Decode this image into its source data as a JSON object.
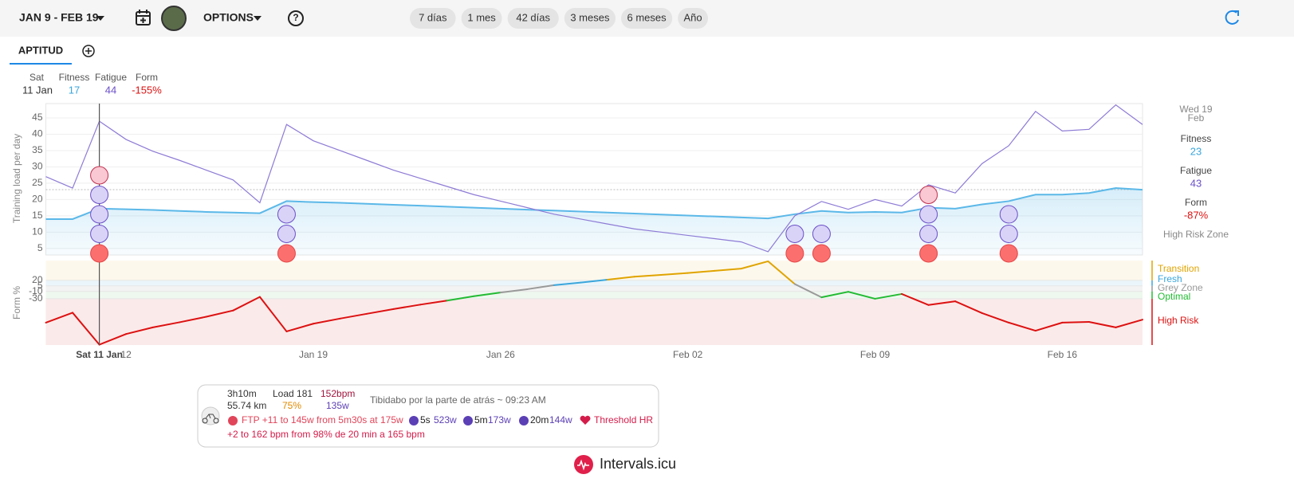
{
  "toolbar": {
    "date_range": "JAN 9 - FEB 19",
    "options": "OPTIONS",
    "ranges": [
      "7 días",
      "1 mes",
      "42 días",
      "3 meses",
      "6 meses",
      "Año"
    ]
  },
  "tabs": {
    "active": "APTITUD"
  },
  "cursor": {
    "day": "Sat",
    "date": "11 Jan",
    "fitness_label": "Fitness",
    "fitness": "17",
    "fatigue_label": "Fatigue",
    "fatigue": "44",
    "form_label": "Form",
    "form": "-155%"
  },
  "side_panel": {
    "day": "Wed 19",
    "month": "Feb",
    "fitness_label": "Fitness",
    "fitness": "23",
    "fatigue_label": "Fatigue",
    "fatigue": "43",
    "form_label": "Form",
    "form": "-87%",
    "zone": "High Risk Zone"
  },
  "chart_data": {
    "type": "line",
    "y_label": "Training load per day",
    "x": [
      "Jan 9",
      "Jan 10",
      "Jan 11",
      "Jan 12",
      "Jan 13",
      "Jan 14",
      "Jan 15",
      "Jan 16",
      "Jan 17",
      "Jan 18",
      "Jan 19",
      "Jan 20",
      "Jan 21",
      "Jan 22",
      "Jan 23",
      "Jan 24",
      "Jan 25",
      "Jan 26",
      "Jan 27",
      "Jan 28",
      "Jan 29",
      "Jan 30",
      "Jan 31",
      "Feb 1",
      "Feb 2",
      "Feb 3",
      "Feb 4",
      "Feb 5",
      "Feb 6",
      "Feb 7",
      "Feb 8",
      "Feb 9",
      "Feb 10",
      "Feb 11",
      "Feb 12",
      "Feb 13",
      "Feb 14",
      "Feb 15",
      "Feb 16",
      "Feb 17",
      "Feb 18",
      "Feb 19"
    ],
    "xticks": [
      {
        "value": "Jan 11",
        "label": "Sat 11 Jan"
      },
      {
        "value": "Jan 12",
        "label": "12"
      },
      "Jan 19",
      "Jan 26",
      {
        "value": "Feb 2",
        "label": "Feb 02"
      },
      {
        "value": "Feb 9",
        "label": "Feb 09"
      },
      "Feb 16"
    ],
    "ylim": [
      3,
      49.4
    ],
    "yticks": [
      5,
      10,
      15,
      20,
      25,
      30,
      35,
      40,
      45
    ],
    "series": [
      {
        "name": "Fitness",
        "color": "#5bb8e8",
        "values": [
          14,
          14,
          17.2,
          17,
          16.8,
          16.5,
          16.2,
          16,
          15.8,
          19.5,
          19.2,
          19,
          18.7,
          18.4,
          18.1,
          17.8,
          17.5,
          17.2,
          16.9,
          16.6,
          16.3,
          16,
          15.7,
          15.4,
          15.1,
          14.8,
          14.5,
          14.2,
          15.5,
          16.5,
          16,
          16.2,
          16,
          17.5,
          17.2,
          18.5,
          19.5,
          21.5,
          21.5,
          22,
          23.5,
          23
        ]
      },
      {
        "name": "Fatigue",
        "color": "#8e7bd6",
        "values": [
          27,
          23.5,
          44,
          38.4,
          34.8,
          32,
          29,
          26,
          19,
          43,
          38,
          35,
          32,
          29,
          26.5,
          24,
          21.5,
          19.5,
          17.5,
          15.5,
          14,
          12.5,
          11,
          10,
          9,
          8,
          7,
          4,
          15,
          19.4,
          17,
          20,
          18,
          24.5,
          22,
          31,
          36.5,
          47,
          41,
          41.5,
          49,
          43
        ]
      }
    ],
    "form": {
      "y_label": "Form %",
      "ylim": [
        -156,
        74
      ],
      "yticks": [
        20,
        5,
        -10,
        -30
      ],
      "values": [
        -95,
        -68,
        -155,
        -126,
        -108,
        -94,
        -79,
        -62,
        -25,
        -119,
        -98,
        -84,
        -71,
        -58,
        -46,
        -35,
        -23,
        -13,
        -4,
        7,
        14,
        22,
        30,
        35,
        40,
        46,
        52,
        72,
        10,
        -26,
        -11,
        -30,
        -17,
        -47,
        -37,
        -69,
        -95,
        -117,
        -95,
        -93,
        -108,
        -87
      ],
      "zones": [
        {
          "name": "Transition",
          "color": "#e0a400",
          "background": "#fdf8ec"
        },
        {
          "name": "Fresh",
          "color": "#3aa6dc",
          "background": "#eaf5fb"
        },
        {
          "name": "Grey Zone",
          "color": "#999999",
          "background": "#f3f3f3"
        },
        {
          "name": "Optimal",
          "color": "#22bb33",
          "background": "#eef8ee"
        },
        {
          "name": "High Risk",
          "color": "#dd1111",
          "background": "#fbeaea"
        }
      ]
    },
    "markers": [
      {
        "x": "Jan 11",
        "stack": [
          "#fb6f6f",
          "#d9d3f7",
          "#d9d3f7",
          "#d9d3f7",
          "#f9c8d2"
        ]
      },
      {
        "x": "Jan 18",
        "stack": [
          "#fb6f6f",
          "#d9d3f7",
          "#d9d3f7"
        ]
      },
      {
        "x": "Feb 6",
        "stack": [
          "#fb6f6f",
          "#d9d3f7"
        ]
      },
      {
        "x": "Feb 7",
        "stack": [
          "#fb6f6f",
          "#d9d3f7"
        ]
      },
      {
        "x": "Feb 11",
        "stack": [
          "#fb6f6f",
          "#d9d3f7",
          "#d9d3f7",
          "#f9c8d2"
        ]
      },
      {
        "x": "Feb 14",
        "stack": [
          "#fb6f6f",
          "#d9d3f7",
          "#d9d3f7"
        ]
      }
    ]
  },
  "activity": {
    "duration": "3h10m",
    "distance": "55.74 km",
    "load": "Load 181",
    "intensity": "75%",
    "hr": "152bpm",
    "power": "135w",
    "title": "Tibidabo por la parte de atrás ~ 09:23 AM",
    "ftp": "FTP +11 to 145w from 5m30s at 175w",
    "efforts": [
      {
        "duration": "5s",
        "watts": "523w"
      },
      {
        "duration": "5m",
        "watts": "173w"
      },
      {
        "duration": "20m",
        "watts": "144w"
      }
    ],
    "threshold": "Threshold HR",
    "threshold_detail": "+2 to 162 bpm from 98% de 20 min a 165 bpm"
  },
  "footer": {
    "brand": "Intervals.icu"
  }
}
